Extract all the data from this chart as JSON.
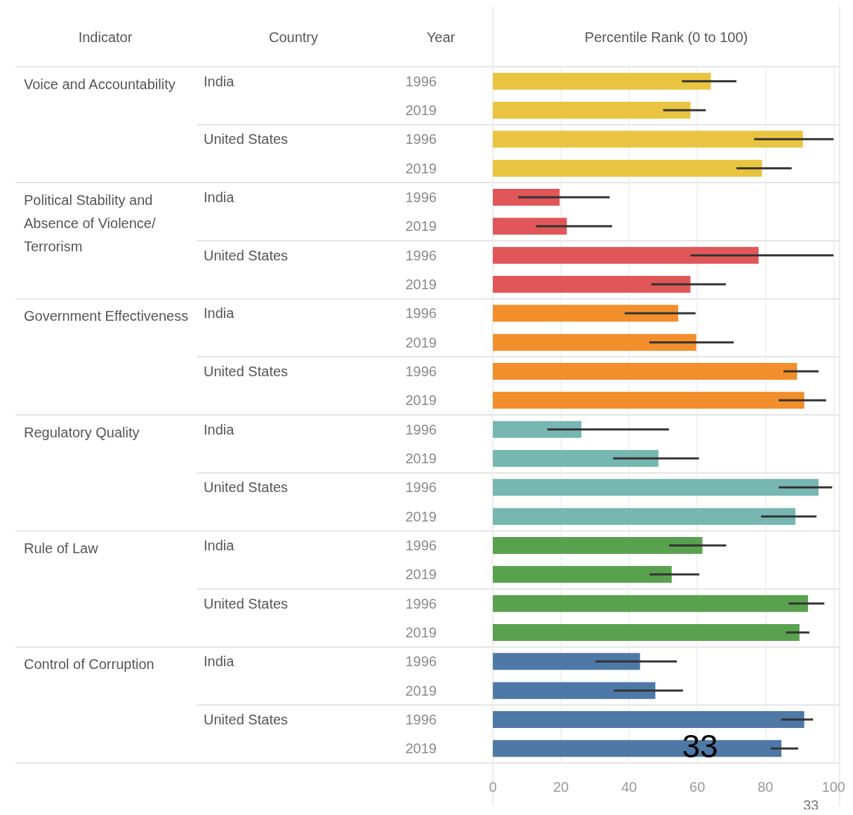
{
  "chart_data": {
    "type": "bar",
    "orientation": "horizontal",
    "xlabel": "Percentile Rank (0 to 100)",
    "categories": [
      "1996",
      "2019",
      "1996",
      "2019",
      "1996",
      "2019",
      "1996",
      "2019",
      "1996",
      "2019",
      "1996",
      "2019",
      "1996",
      "2019",
      "1996",
      "2019",
      "1996",
      "2019",
      "1996",
      "2019",
      "1996",
      "2019",
      "1996",
      "2019"
    ],
    "values": [
      64,
      58,
      91,
      79,
      19.6,
      21.7,
      78,
      58,
      54.4,
      59.7,
      89.3,
      91.4,
      26,
      48.6,
      95.6,
      88.8,
      61.5,
      52.5,
      92.5,
      90,
      43.2,
      47.7,
      91.4,
      84.7
    ],
    "errors": [
      [
        55.5,
        71.5
      ],
      [
        50,
        62.5
      ],
      [
        76.7,
        100
      ],
      [
        71.5,
        87.7
      ],
      [
        7.4,
        34.3
      ],
      [
        12.7,
        35
      ],
      [
        58,
        100
      ],
      [
        46.5,
        68.4
      ],
      [
        38.7,
        59.5
      ],
      [
        45.9,
        70.7
      ],
      [
        85.3,
        95.6
      ],
      [
        83.9,
        97.8
      ],
      [
        16,
        51.7
      ],
      [
        35.3,
        60.5
      ],
      [
        83.9,
        99.6
      ],
      [
        78.7,
        95
      ],
      [
        51.7,
        68.5
      ],
      [
        46,
        60.6
      ],
      [
        86.8,
        97.3
      ],
      [
        86,
        92.9
      ],
      [
        30.1,
        54
      ],
      [
        35.5,
        55.8
      ],
      [
        84.6,
        94
      ],
      [
        81.5,
        89.6
      ]
    ],
    "colors": [
      "#e9c440",
      "#e9c440",
      "#e9c440",
      "#e9c440",
      "#e15759",
      "#e15759",
      "#e15759",
      "#e15759",
      "#f28e2b",
      "#f28e2b",
      "#f28e2b",
      "#f28e2b",
      "#76b7b2",
      "#76b7b2",
      "#76b7b2",
      "#76b7b2",
      "#59a14f",
      "#59a14f",
      "#59a14f",
      "#59a14f",
      "#4e79a7",
      "#4e79a7",
      "#4e79a7",
      "#4e79a7"
    ],
    "xlim": [
      0,
      100
    ],
    "xticks": [
      0,
      20,
      40,
      60,
      80,
      100
    ],
    "grid": "x",
    "annotations": [
      "Indicator",
      "Country",
      "Year",
      "Voice and Accountability",
      "India",
      "United States",
      "Political Stability and Absence of Violence/Terrorism",
      "India",
      "United States",
      "Government Effectiveness",
      "India",
      "United States",
      "Regulatory Quality",
      "India",
      "United States",
      "Rule of Law",
      "India",
      "United States",
      "Control of Corruption",
      "India",
      "United States",
      "33",
      "33"
    ]
  }
}
